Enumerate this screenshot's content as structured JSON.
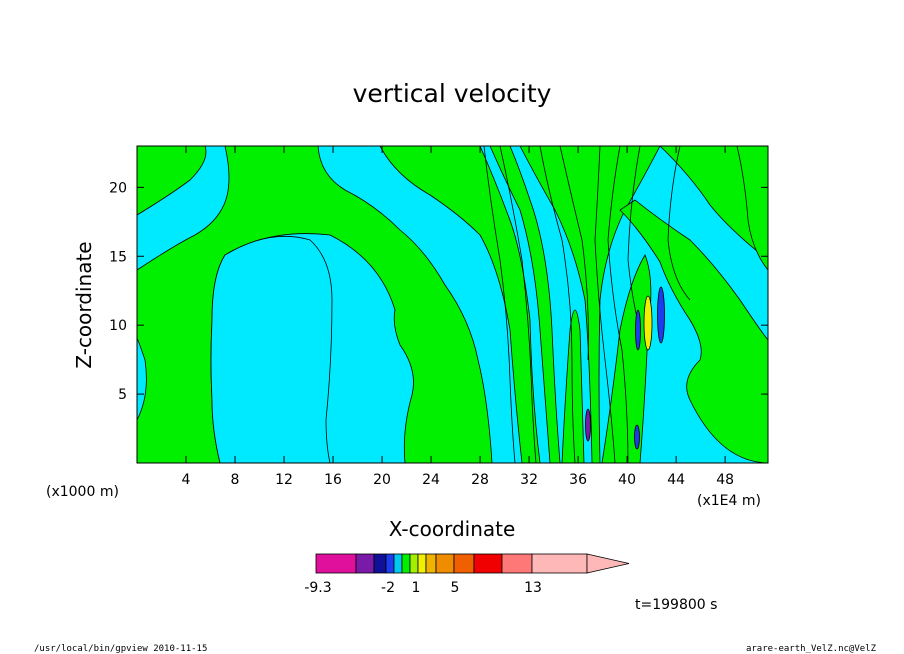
{
  "chart_data": {
    "type": "heatmap",
    "title": "vertical velocity",
    "xlabel": "X-coordinate",
    "ylabel": "Z-coordinate",
    "x_unit_left": "(x1000 m)",
    "x_unit_right": "(x1E4 m)",
    "xlim": [
      0,
      51.5
    ],
    "ylim": [
      0,
      23
    ],
    "x_ticks": [
      "4",
      "8",
      "12",
      "16",
      "20",
      "24",
      "28",
      "32",
      "36",
      "40",
      "44",
      "48"
    ],
    "y_ticks": [
      "5",
      "10",
      "15",
      "20"
    ],
    "colorbar": {
      "colors": [
        "#e0109c",
        "#7a1aa8",
        "#101098",
        "#1c3cf0",
        "#00c8f0",
        "#00f000",
        "#a0f000",
        "#f0f000",
        "#f0b400",
        "#f08c00",
        "#f06000",
        "#f00000",
        "#ff7878",
        "#ffb8b8"
      ],
      "labels": [
        "-9.3",
        "-2",
        "1",
        "5",
        "13"
      ]
    },
    "time_label": "t=199800 s",
    "background_color": "#00eaff",
    "positive_color": "#00f000"
  },
  "footer": {
    "left": "/usr/local/bin/gpview  2010-11-15",
    "right": "arare-earth_VelZ.nc@VelZ"
  }
}
